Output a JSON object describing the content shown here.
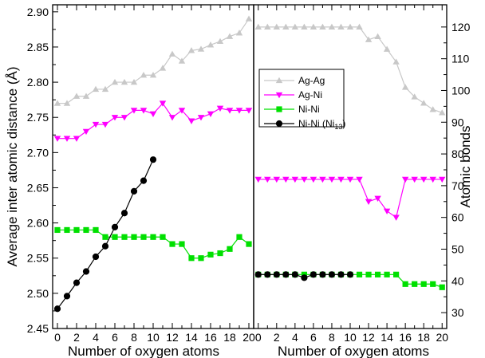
{
  "chart_data": [
    {
      "type": "line",
      "panel": "left",
      "xlabel": "Number of oxygen atoms",
      "ylabel": "Average inter atomic distance (Å)",
      "xlim": [
        -0.5,
        20.5
      ],
      "ylim": [
        2.45,
        2.91
      ],
      "xticks": [
        0,
        2,
        4,
        6,
        8,
        10,
        12,
        14,
        16,
        18,
        20
      ],
      "yticks": [
        2.45,
        2.5,
        2.55,
        2.6,
        2.65,
        2.7,
        2.75,
        2.8,
        2.85,
        2.9
      ],
      "ytick_labels": [
        "2.45",
        "2.50",
        "2.55",
        "2.60",
        "2.65",
        "2.70",
        "2.75",
        "2.80",
        "2.85",
        "2.90"
      ],
      "series": [
        {
          "name": "Ag-Ag",
          "color": "#c8c8c8",
          "marker": "triangle-up",
          "x": [
            0,
            1,
            2,
            3,
            4,
            5,
            6,
            7,
            8,
            9,
            10,
            11,
            12,
            13,
            14,
            15,
            16,
            17,
            18,
            19,
            20
          ],
          "y": [
            2.77,
            2.77,
            2.78,
            2.78,
            2.79,
            2.79,
            2.8,
            2.8,
            2.8,
            2.81,
            2.81,
            2.82,
            2.84,
            2.83,
            2.845,
            2.847,
            2.853,
            2.858,
            2.865,
            2.87,
            2.89
          ]
        },
        {
          "name": "Ag-Ni",
          "color": "#ff00ff",
          "marker": "triangle-down",
          "x": [
            0,
            1,
            2,
            3,
            4,
            5,
            6,
            7,
            8,
            9,
            10,
            11,
            12,
            13,
            14,
            15,
            16,
            17,
            18,
            19,
            20
          ],
          "y": [
            2.72,
            2.72,
            2.72,
            2.73,
            2.74,
            2.74,
            2.75,
            2.75,
            2.76,
            2.76,
            2.755,
            2.77,
            2.75,
            2.76,
            2.745,
            2.75,
            2.755,
            2.763,
            2.76,
            2.76,
            2.76
          ]
        },
        {
          "name": "Ni-Ni",
          "color": "#00e000",
          "marker": "square",
          "x": [
            0,
            1,
            2,
            3,
            4,
            5,
            6,
            7,
            8,
            9,
            10,
            11,
            12,
            13,
            14,
            15,
            16,
            17,
            18,
            19,
            20
          ],
          "y": [
            2.59,
            2.59,
            2.59,
            2.59,
            2.59,
            2.58,
            2.58,
            2.58,
            2.58,
            2.58,
            2.58,
            2.58,
            2.57,
            2.57,
            2.55,
            2.55,
            2.555,
            2.557,
            2.563,
            2.58,
            2.57
          ]
        },
        {
          "name": "Ni-Ni (Ni",
          "name_sub": "13",
          "name_suffix": ")",
          "color": "#000000",
          "marker": "circle",
          "x": [
            0,
            1,
            2,
            3,
            4,
            5,
            6,
            7,
            8,
            9,
            10
          ],
          "y": [
            2.478,
            2.496,
            2.515,
            2.531,
            2.552,
            2.567,
            2.594,
            2.614,
            2.645,
            2.66,
            2.69
          ]
        }
      ]
    },
    {
      "type": "line",
      "panel": "right",
      "xlabel": "Number of oxygen atoms",
      "ylabel": "Atomic bonds",
      "xlim": [
        -0.5,
        20.5
      ],
      "ylim": [
        25,
        127
      ],
      "xticks": [
        0,
        2,
        4,
        6,
        8,
        10,
        12,
        14,
        16,
        18,
        20
      ],
      "yticks": [
        30,
        40,
        50,
        60,
        70,
        80,
        90,
        100,
        110,
        120
      ],
      "ytick_labels": [
        "30",
        "40",
        "50",
        "60",
        "70",
        "80",
        "90",
        "100",
        "110",
        "120"
      ],
      "legend_placement": "upper-left",
      "series": [
        {
          "name": "Ag-Ag",
          "color": "#c8c8c8",
          "marker": "triangle-up",
          "x": [
            0,
            1,
            2,
            3,
            4,
            5,
            6,
            7,
            8,
            9,
            10,
            11,
            12,
            13,
            14,
            15,
            16,
            17,
            18,
            19,
            20
          ],
          "y": [
            120,
            120,
            120,
            120,
            120,
            120,
            120,
            120,
            120,
            120,
            120,
            120,
            116,
            117,
            113,
            109,
            101,
            98,
            96,
            94,
            93
          ]
        },
        {
          "name": "Ag-Ni",
          "color": "#ff00ff",
          "marker": "triangle-down",
          "x": [
            0,
            1,
            2,
            3,
            4,
            5,
            6,
            7,
            8,
            9,
            10,
            11,
            12,
            13,
            14,
            15,
            16,
            17,
            18,
            19,
            20
          ],
          "y": [
            72,
            72,
            72,
            72,
            72,
            72,
            72,
            72,
            72,
            72,
            72,
            72,
            65,
            66,
            62,
            60,
            72,
            72,
            72,
            72,
            72
          ]
        },
        {
          "name": "Ni-Ni",
          "color": "#00e000",
          "marker": "square",
          "x": [
            0,
            1,
            2,
            3,
            4,
            5,
            6,
            7,
            8,
            9,
            10,
            11,
            12,
            13,
            14,
            15,
            16,
            17,
            18,
            19,
            20
          ],
          "y": [
            42,
            42,
            42,
            42,
            42,
            42,
            42,
            42,
            42,
            42,
            42,
            42,
            42,
            42,
            42,
            42,
            39,
            39,
            39,
            39,
            38
          ]
        },
        {
          "name": "Ni-Ni (Ni",
          "name_sub": "13",
          "name_suffix": ")",
          "color": "#000000",
          "marker": "circle",
          "x": [
            0,
            1,
            2,
            3,
            4,
            5,
            6,
            7,
            8,
            9,
            10
          ],
          "y": [
            42,
            42,
            42,
            42,
            42,
            41,
            42,
            42,
            42,
            42,
            42
          ]
        }
      ]
    }
  ]
}
